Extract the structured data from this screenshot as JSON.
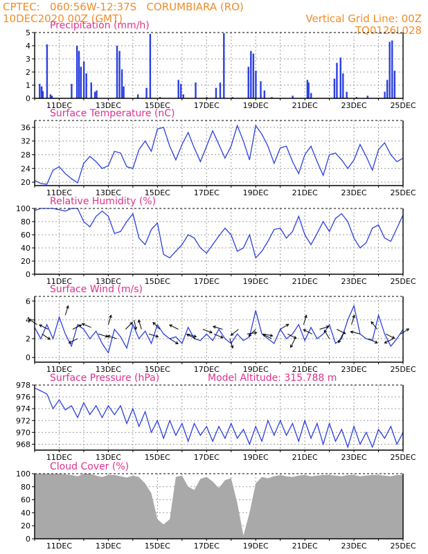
{
  "header": {
    "line1_left": "CPTEC:   060:56W-12:37S   CORUMBIARA (RO)",
    "line2_left": "10DEC2020 00Z (GMT)",
    "line1_right": "Vertical Grid Line: 00Z",
    "line2_right": "TQ0126L028"
  },
  "colors": {
    "series": "#2a3fe0",
    "header": "#f08c28",
    "title": "#e0308c",
    "cloud": "#a9a9a9"
  },
  "x_axis": {
    "ticks": [
      "11DEC",
      "13DEC",
      "15DEC",
      "17DEC",
      "19DEC",
      "21DEC",
      "23DEC",
      "25DEC"
    ]
  },
  "chart_data": [
    {
      "type": "bar",
      "title": "Precipitation (mm/h)",
      "ylim": [
        0,
        5
      ],
      "yticks": [
        0,
        1,
        2,
        3,
        4,
        5
      ],
      "x_days": [
        10.2,
        10.28,
        10.33,
        10.5,
        10.64,
        10.7,
        11.5,
        11.72,
        11.8,
        11.88,
        12.0,
        12.1,
        12.3,
        12.45,
        12.52,
        13.35,
        13.45,
        13.55,
        13.62,
        14.2,
        14.55,
        14.7,
        15.1,
        15.85,
        15.95,
        16.05,
        16.55,
        17.0,
        17.38,
        17.55,
        17.7,
        18.05,
        18.7,
        18.8,
        18.9,
        19.0,
        19.2,
        19.35,
        19.65,
        20.5,
        21.1,
        21.15,
        21.25,
        22.2,
        22.3,
        22.45,
        22.55,
        22.7,
        23.1,
        23.55,
        24.25,
        24.35,
        24.45,
        24.55,
        24.65
      ],
      "values": [
        1.1,
        0.9,
        0.55,
        4.1,
        0.3,
        0.2,
        1.1,
        4.0,
        3.6,
        2.4,
        2.8,
        1.9,
        1.2,
        0.5,
        0.6,
        4.0,
        3.6,
        2.2,
        0.9,
        0.3,
        0.8,
        4.9,
        0.1,
        1.4,
        1.1,
        0.3,
        1.2,
        0.1,
        0.8,
        1.2,
        4.95,
        0.1,
        2.4,
        3.6,
        3.4,
        2.1,
        1.3,
        0.6,
        0.1,
        0.2,
        1.4,
        1.2,
        0.4,
        1.5,
        2.7,
        3.1,
        1.9,
        0.5,
        0.1,
        0.2,
        0.5,
        1.4,
        4.3,
        4.4,
        2.1
      ]
    },
    {
      "type": "line",
      "title": "Surface Temperature (nC)",
      "ylim": [
        19,
        38
      ],
      "yticks": [
        20,
        24,
        28,
        32,
        36
      ],
      "x_days": [
        10,
        10.25,
        10.5,
        10.75,
        11,
        11.25,
        11.5,
        11.75,
        12,
        12.25,
        12.5,
        12.75,
        13,
        13.25,
        13.5,
        13.75,
        14,
        14.25,
        14.5,
        14.75,
        15,
        15.25,
        15.5,
        15.75,
        16,
        16.25,
        16.5,
        16.75,
        17,
        17.25,
        17.5,
        17.75,
        18,
        18.25,
        18.5,
        18.75,
        19,
        19.25,
        19.5,
        19.75,
        20,
        20.25,
        20.5,
        20.75,
        21,
        21.25,
        21.5,
        21.75,
        22,
        22.25,
        22.5,
        22.75,
        23,
        23.25,
        23.5,
        23.75,
        24,
        24.25,
        24.5,
        24.75,
        25
      ],
      "values": [
        20.5,
        19.6,
        19.4,
        23.5,
        24.5,
        22.5,
        21.0,
        19.8,
        25.5,
        27.5,
        26.0,
        24.0,
        24.8,
        29.0,
        28.5,
        24.5,
        24.0,
        29.5,
        32.0,
        29.0,
        35.5,
        36.0,
        30.5,
        26.5,
        31.0,
        34.5,
        30.0,
        26.0,
        30.5,
        35.0,
        31.0,
        27.0,
        30.5,
        36.5,
        32.0,
        26.5,
        36.5,
        34.0,
        30.5,
        25.5,
        30.0,
        30.5,
        26.0,
        22.5,
        28.0,
        30.5,
        26.0,
        22.0,
        28.0,
        28.5,
        26.5,
        24.0,
        26.5,
        31.0,
        27.5,
        23.5,
        29.5,
        31.5,
        28.0,
        26.0,
        27.0
      ]
    },
    {
      "type": "line",
      "title": "Relative Humidity (%)",
      "ylim": [
        0,
        100
      ],
      "yticks": [
        0,
        20,
        40,
        60,
        80,
        100
      ],
      "x_days": [
        10,
        10.25,
        10.5,
        10.75,
        11,
        11.25,
        11.5,
        11.75,
        12,
        12.25,
        12.5,
        12.75,
        13,
        13.25,
        13.5,
        13.75,
        14,
        14.25,
        14.5,
        14.75,
        15,
        15.25,
        15.5,
        15.75,
        16,
        16.25,
        16.5,
        16.75,
        17,
        17.25,
        17.5,
        17.75,
        18,
        18.25,
        18.5,
        18.75,
        19,
        19.25,
        19.5,
        19.75,
        20,
        20.25,
        20.5,
        20.75,
        21,
        21.25,
        21.5,
        21.75,
        22,
        22.25,
        22.5,
        22.75,
        23,
        23.25,
        23.5,
        23.75,
        24,
        24.25,
        24.5,
        24.75,
        25
      ],
      "values": [
        97,
        100,
        100,
        100,
        98,
        96,
        100,
        100,
        80,
        72,
        88,
        96,
        88,
        62,
        65,
        80,
        92,
        55,
        45,
        68,
        78,
        30,
        25,
        35,
        45,
        60,
        55,
        40,
        32,
        45,
        58,
        70,
        60,
        35,
        40,
        60,
        25,
        35,
        50,
        68,
        70,
        55,
        65,
        88,
        60,
        45,
        62,
        80,
        65,
        85,
        92,
        80,
        55,
        40,
        48,
        70,
        75,
        55,
        50,
        70,
        90
      ]
    },
    {
      "type": "line",
      "title": "Surface Wind (m/s)",
      "ylim": [
        -0.5,
        6.5
      ],
      "yticks": [
        0,
        2,
        4,
        6
      ],
      "x_days": [
        10,
        10.25,
        10.5,
        10.75,
        11,
        11.25,
        11.5,
        11.75,
        12,
        12.25,
        12.5,
        12.75,
        13,
        13.25,
        13.5,
        13.75,
        14,
        14.25,
        14.5,
        14.75,
        15,
        15.25,
        15.5,
        15.75,
        16,
        16.25,
        16.5,
        16.75,
        17,
        17.25,
        17.5,
        17.75,
        18,
        18.25,
        18.5,
        18.75,
        19,
        19.25,
        19.5,
        19.75,
        20,
        20.25,
        20.5,
        20.75,
        21,
        21.25,
        21.5,
        21.75,
        22,
        22.25,
        22.5,
        22.75,
        23,
        23.25,
        23.5,
        23.75,
        24,
        24.25,
        24.5,
        24.75,
        25
      ],
      "values": [
        3.2,
        2.0,
        3.5,
        2.0,
        4.3,
        2.5,
        1.2,
        3.5,
        3.0,
        2.0,
        2.8,
        1.5,
        0.5,
        3.0,
        2.2,
        1.0,
        3.5,
        2.0,
        2.8,
        1.5,
        3.5,
        2.5,
        2.0,
        2.2,
        1.5,
        3.2,
        2.0,
        1.8,
        2.5,
        1.8,
        3.0,
        2.0,
        1.5,
        2.5,
        1.8,
        2.2,
        5.0,
        2.5,
        2.0,
        1.5,
        3.0,
        2.0,
        2.5,
        3.5,
        1.8,
        3.2,
        2.0,
        2.5,
        3.5,
        1.5,
        2.0,
        4.0,
        5.5,
        2.5,
        2.0,
        1.8,
        4.5,
        2.5,
        1.2,
        2.0,
        3.0
      ]
    },
    {
      "type": "line",
      "title": "Surface Pressure (hPa)",
      "annotation": "Model Altitude: 315.788 m",
      "ylim": [
        967,
        978
      ],
      "yticks": [
        968,
        970,
        972,
        974,
        976,
        978
      ],
      "x_days": [
        10,
        10.25,
        10.5,
        10.75,
        11,
        11.25,
        11.5,
        11.75,
        12,
        12.25,
        12.5,
        12.75,
        13,
        13.25,
        13.5,
        13.75,
        14,
        14.25,
        14.5,
        14.75,
        15,
        15.25,
        15.5,
        15.75,
        16,
        16.25,
        16.5,
        16.75,
        17,
        17.25,
        17.5,
        17.75,
        18,
        18.25,
        18.5,
        18.75,
        19,
        19.25,
        19.5,
        19.75,
        20,
        20.25,
        20.5,
        20.75,
        21,
        21.25,
        21.5,
        21.75,
        22,
        22.25,
        22.5,
        22.75,
        23,
        23.25,
        23.5,
        23.75,
        24,
        24.25,
        24.5,
        24.75,
        25
      ],
      "values": [
        977.5,
        977.0,
        976.5,
        974.0,
        975.5,
        973.8,
        974.5,
        972.5,
        975.0,
        973.0,
        974.5,
        972.5,
        974.5,
        973.0,
        974.5,
        971.5,
        974.0,
        971.0,
        973.5,
        970.0,
        972.0,
        969.0,
        972.0,
        969.5,
        971.5,
        968.5,
        971.5,
        969.5,
        971.0,
        968.5,
        971.0,
        969.0,
        971.5,
        969.0,
        970.5,
        968.0,
        971.0,
        968.5,
        972.0,
        969.5,
        972.0,
        969.5,
        971.5,
        968.5,
        972.0,
        969.0,
        971.5,
        968.0,
        971.5,
        968.5,
        970.5,
        967.5,
        971.0,
        968.0,
        970.0,
        967.5,
        970.5,
        969.0,
        971.0,
        968.0,
        970.0
      ]
    },
    {
      "type": "area",
      "title": "Cloud Cover (%)",
      "ylim": [
        0,
        100
      ],
      "yticks": [
        0,
        20,
        40,
        60,
        80,
        100
      ],
      "x_days": [
        10,
        10.25,
        10.5,
        10.75,
        11,
        11.25,
        11.5,
        11.75,
        12,
        12.25,
        12.5,
        12.75,
        13,
        13.25,
        13.5,
        13.75,
        14,
        14.25,
        14.5,
        14.75,
        15,
        15.25,
        15.5,
        15.75,
        16,
        16.25,
        16.5,
        16.75,
        17,
        17.25,
        17.5,
        17.75,
        18,
        18.25,
        18.5,
        18.75,
        19,
        19.25,
        19.5,
        19.75,
        20,
        20.25,
        20.5,
        20.75,
        21,
        21.25,
        21.5,
        21.75,
        22,
        22.25,
        22.5,
        22.75,
        23,
        23.25,
        23.5,
        23.75,
        24,
        24.25,
        24.5,
        24.75,
        25
      ],
      "values": [
        100,
        100,
        100,
        100,
        100,
        99,
        98,
        96,
        100,
        100,
        97,
        95,
        98,
        98,
        96,
        94,
        97,
        95,
        85,
        70,
        30,
        22,
        30,
        95,
        97,
        80,
        75,
        92,
        95,
        88,
        78,
        90,
        93,
        55,
        5,
        40,
        85,
        95,
        93,
        96,
        98,
        96,
        95,
        97,
        98,
        96,
        97,
        98,
        98,
        97,
        96,
        98,
        98,
        96,
        97,
        98,
        98,
        97,
        96,
        98,
        98
      ]
    }
  ],
  "wind_vectors": {
    "x_days": [
      10.1,
      10.3,
      10.55,
      11.25,
      11.55,
      11.75,
      12.3,
      12.6,
      13.0,
      13.35,
      13.7,
      14.05,
      14.35,
      14.65,
      15.1,
      15.5,
      15.85,
      16.2,
      16.55,
      16.85,
      17.3,
      17.65,
      17.95,
      18.3,
      18.65,
      19.0,
      19.3,
      19.65,
      20.0,
      20.3,
      20.6,
      20.95,
      21.3,
      21.6,
      22.0,
      22.3,
      22.55,
      22.9,
      23.25,
      23.6,
      23.95,
      24.3,
      24.6,
      24.9
    ],
    "y_values": [
      3.5,
      2.5,
      3.0,
      4.5,
      3.0,
      2.0,
      3.2,
      2.5,
      3.5,
      2.0,
      3.0,
      4.0,
      3.0,
      2.5,
      3.0,
      2.0,
      3.0,
      2.5,
      2.0,
      3.0,
      2.5,
      3.0,
      2.0,
      3.0,
      2.5,
      3.0,
      2.5,
      2.0,
      3.0,
      2.5,
      2.0,
      3.5,
      2.5,
      3.0,
      2.0,
      3.0,
      2.5,
      3.5,
      2.5,
      2.0,
      3.0,
      2.5,
      2.0,
      2.5
    ],
    "u": [
      -1.2,
      1.2,
      -1.0,
      0.3,
      1.0,
      -1.0,
      -1.2,
      1.0,
      0.3,
      -1.0,
      0.5,
      0.2,
      -0.3,
      1.0,
      -0.5,
      0.8,
      -1.0,
      1.0,
      -1.0,
      0.8,
      1.2,
      -1.0,
      0.3,
      -1.0,
      1.5,
      -1.0,
      1.5,
      -1.0,
      0.5,
      1.0,
      -0.5,
      0.3,
      -1.0,
      1.0,
      -0.6,
      1.0,
      -0.5,
      0.3,
      -1.2,
      1.0,
      -0.8,
      1.0,
      -1.0,
      0.8
    ],
    "v": [
      0.8,
      -0.8,
      0.5,
      1.0,
      0.5,
      -0.5,
      0.5,
      -0.3,
      1.0,
      0.3,
      0.5,
      -1.0,
      1.0,
      -0.3,
      0.5,
      -0.5,
      0.5,
      -0.3,
      0.5,
      -0.3,
      -0.5,
      0.3,
      -1.0,
      -0.8,
      0.2,
      -1.0,
      -0.3,
      0.5,
      0.3,
      -0.5,
      -1.0,
      1.0,
      0.5,
      0.3,
      1.0,
      -0.5,
      -1.0,
      1.0,
      0.3,
      -0.5,
      1.0,
      -0.5,
      -0.5,
      0.5
    ]
  }
}
